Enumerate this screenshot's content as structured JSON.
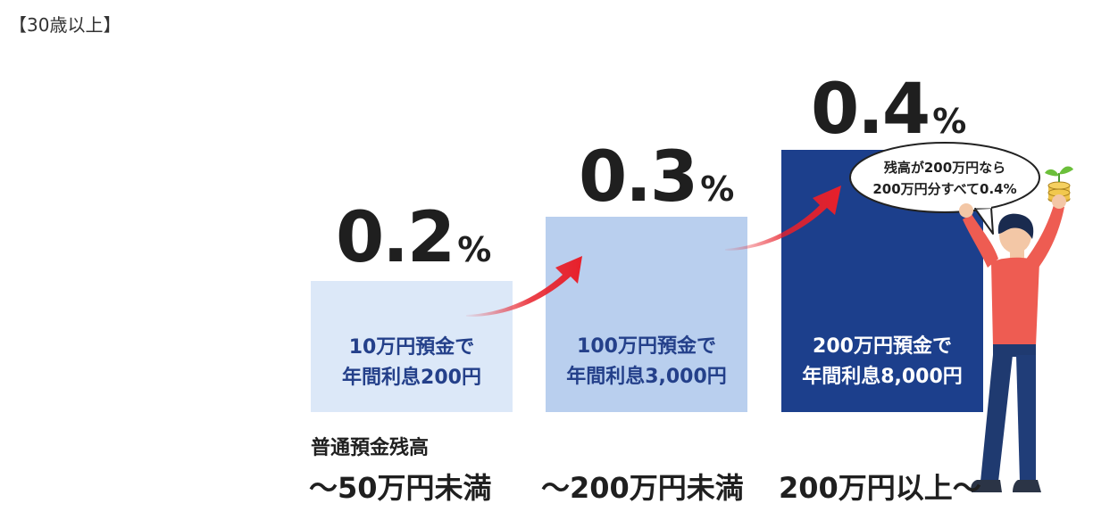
{
  "heading": "【30歳以上】",
  "chart_data": {
    "type": "bar",
    "categories": [
      "～50万円未満",
      "～200万円未満",
      "200万円以上～"
    ],
    "series": [
      {
        "values": [
          0.2,
          0.3,
          0.4
        ]
      }
    ],
    "unit": "%",
    "rate_labels": [
      "0.2",
      "0.3",
      "0.4"
    ],
    "bar_captions": [
      [
        "10万円預金で",
        "年間利息200円"
      ],
      [
        "100万円預金で",
        "年間利息3,000円"
      ],
      [
        "200万円預金で",
        "年間利息8,000円"
      ]
    ],
    "axis_title": "普通預金残高",
    "colors": [
      "#dce8f8",
      "#b9cfee",
      "#1c3f8c"
    ],
    "text_colors": [
      "#24408a",
      "#24408a",
      "#ffffff"
    ]
  },
  "callout": {
    "line1": "残高が200万円なら",
    "line2": "200万円分すべて0.4%"
  },
  "arrow_color": "#e8202a"
}
